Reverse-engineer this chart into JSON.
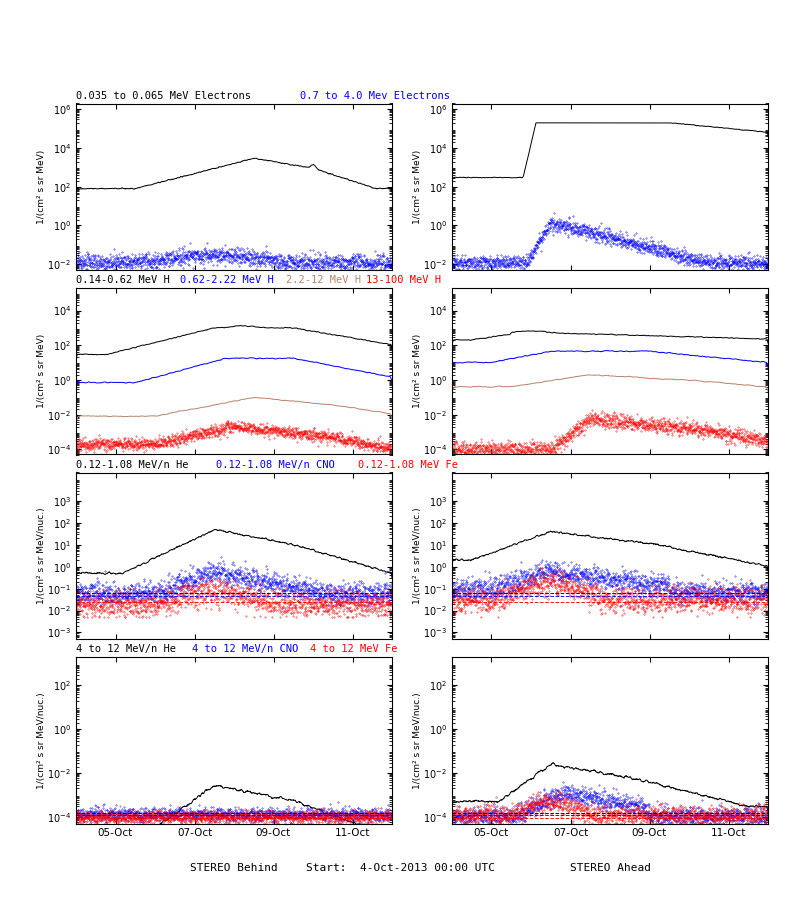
{
  "row0_title_left_text": "0.035 to 0.065 MeV Electrons",
  "row0_title_left_color": "black",
  "row0_title_right_text": "0.7 to 4.0 Mev Electrons",
  "row0_title_right_color": "blue",
  "row1_titles": [
    "0.14-0.62 MeV H",
    "0.62-2.22 MeV H",
    "2.2-12 MeV H",
    "13-100 MeV H"
  ],
  "row1_colors": [
    "black",
    "blue",
    "#b8856a",
    "red"
  ],
  "row2_titles": [
    "0.12-1.08 MeV/n He",
    "0.12-1.08 MeV/n CNO",
    "0.12-1.08 MeV Fe"
  ],
  "row2_colors": [
    "black",
    "blue",
    "red"
  ],
  "row3_titles": [
    "4 to 12 MeV/n He",
    "4 to 12 MeV/n CNO",
    "4 to 12 MeV Fe"
  ],
  "row3_colors": [
    "black",
    "blue",
    "red"
  ],
  "xlabel_left": "STEREO Behind",
  "xlabel_center": "Start:  4-Oct-2013 00:00 UTC",
  "xlabel_right": "STEREO Ahead",
  "xtick_labels": [
    "05-Oct",
    "07-Oct",
    "09-Oct",
    "11-Oct"
  ],
  "ylabel_elec": "1/(cm² s sr MeV)",
  "ylabel_H": "1/(cm² s sr MeV)",
  "ylabel_low": "1/(cm² s sr MeV/nuc.)",
  "BROWN": "#b8856a",
  "BLACK": "black",
  "BLUE": "blue",
  "RED": "red"
}
